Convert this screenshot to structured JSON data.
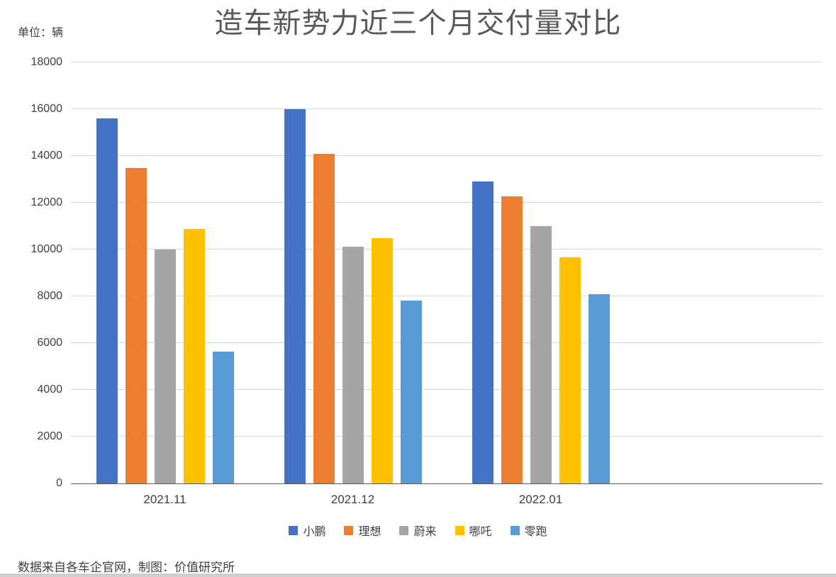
{
  "chart": {
    "title": "造车新势力近三个月交付量对比",
    "unit_label": "单位：辆",
    "source": "数据来自各车企官网，制图：价值研究所"
  },
  "chart_data": {
    "type": "bar",
    "title": "造车新势力近三个月交付量对比",
    "unit": "辆",
    "categories": [
      "2021.11",
      "2021.12",
      "2022.01"
    ],
    "series": [
      {
        "name": "小鹏",
        "color": "#4472C4",
        "values": [
          15613,
          16000,
          12922
        ]
      },
      {
        "name": "理想",
        "color": "#ED7D31",
        "values": [
          13485,
          14087,
          12268
        ]
      },
      {
        "name": "蔚来",
        "color": "#A5A5A5",
        "values": [
          10013,
          10127,
          11009
        ]
      },
      {
        "name": "哪吒",
        "color": "#FFC000",
        "values": [
          10878,
          10489,
          9652
        ]
      },
      {
        "name": "零跑",
        "color": "#5B9BD5",
        "values": [
          5628,
          7807,
          8085
        ]
      }
    ],
    "xlabel": "",
    "ylabel": "单位：辆",
    "ylim": [
      0,
      18000
    ],
    "ytick_step": 2000,
    "grid": true,
    "legend_position": "bottom",
    "trailing_empty_slots": 1,
    "source": "数据来自各车企官网，制图：价值研究所"
  }
}
